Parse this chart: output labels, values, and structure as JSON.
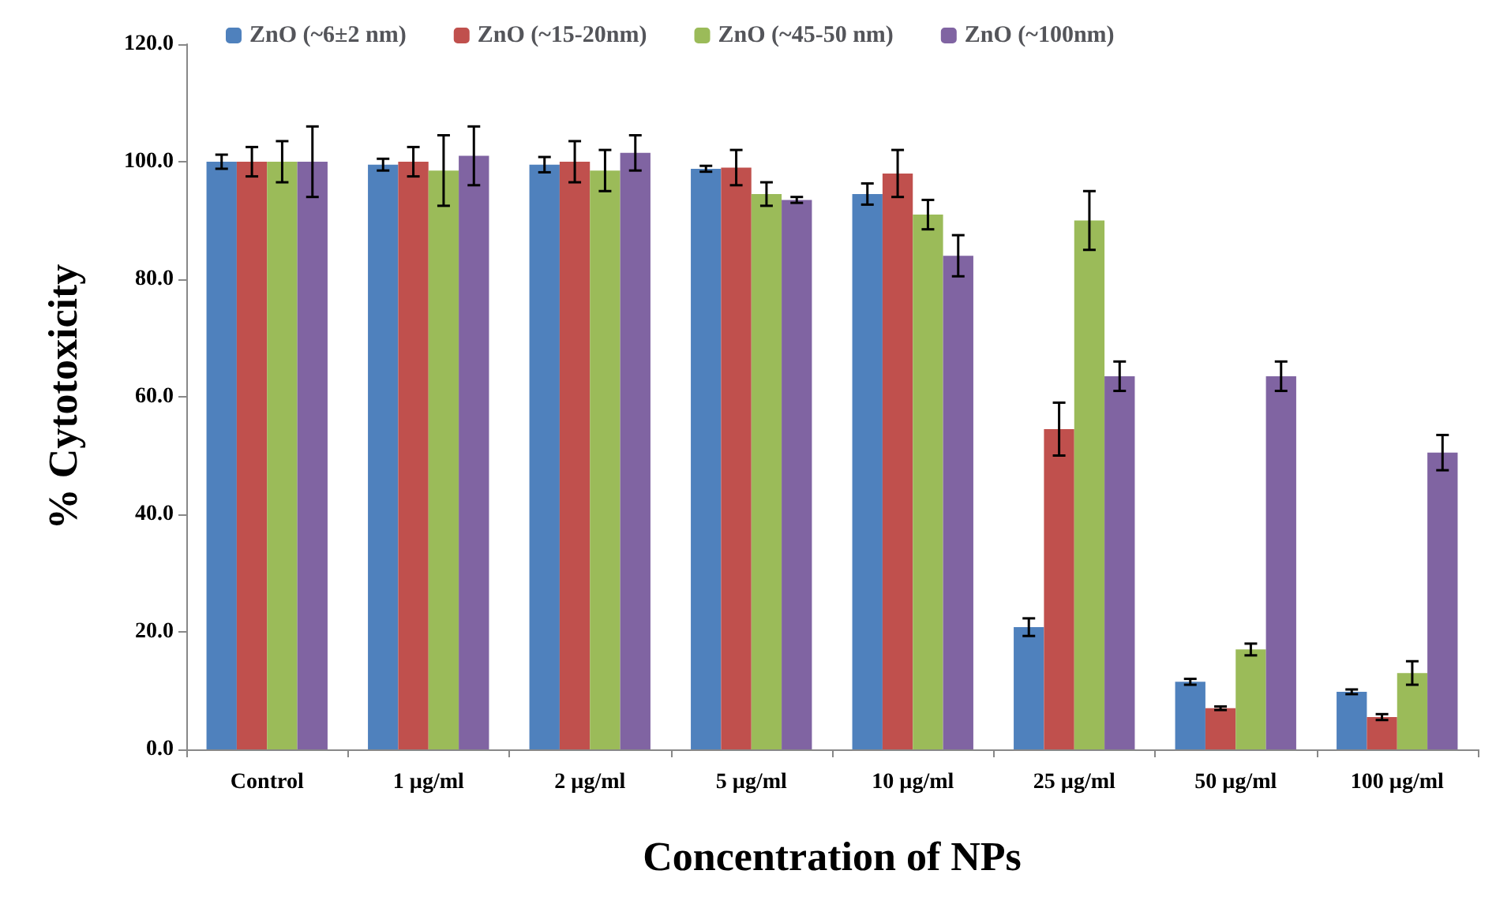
{
  "chart_data": {
    "type": "bar",
    "xlabel": "Concentration of NPs",
    "ylabel": "% Cytotoxicity",
    "categories": [
      "Control",
      "1 µg/ml",
      "2 µg/ml",
      "5 µg/ml",
      "10 µg/ml",
      "25 µg/ml",
      "50 µg/ml",
      "100 µg/ml"
    ],
    "series": [
      {
        "name": "ZnO (~6±2 nm)",
        "color": "#4f81bd",
        "values": [
          100,
          99.5,
          99.5,
          98.8,
          94.5,
          20.8,
          11.5,
          9.8
        ],
        "errors": [
          1.2,
          1,
          1.3,
          0.5,
          1.8,
          1.5,
          0.5,
          0.4
        ]
      },
      {
        "name": "ZnO (~15-20nm)",
        "color": "#c0504d",
        "values": [
          100,
          100,
          100,
          99,
          98,
          54.5,
          7,
          5.5
        ],
        "errors": [
          2.5,
          2.5,
          3.5,
          3,
          4,
          4.5,
          0.3,
          0.5
        ]
      },
      {
        "name": "ZnO (~45-50 nm)",
        "color": "#9bbb59",
        "values": [
          100,
          98.5,
          98.5,
          94.5,
          91,
          90,
          17,
          13
        ],
        "errors": [
          3.5,
          6,
          3.5,
          2,
          2.5,
          5,
          1,
          2
        ]
      },
      {
        "name": "ZnO (~100nm)",
        "color": "#8064a2",
        "values": [
          100,
          101,
          101.5,
          93.5,
          84,
          63.5,
          63.5,
          50.5
        ],
        "errors": [
          6,
          5,
          3,
          0.5,
          3.5,
          2.5,
          2.5,
          3
        ]
      }
    ],
    "ylim": [
      0,
      120
    ],
    "yticks": [
      {
        "value": 0,
        "label": "0.0"
      },
      {
        "value": 20,
        "label": "20.0"
      },
      {
        "value": 40,
        "label": "40.0"
      },
      {
        "value": 60,
        "label": "60.0"
      },
      {
        "value": 80,
        "label": "80.0"
      },
      {
        "value": 100,
        "label": "100.0"
      },
      {
        "value": 120,
        "label": "120.0"
      }
    ],
    "grid": false,
    "legend": "top"
  }
}
